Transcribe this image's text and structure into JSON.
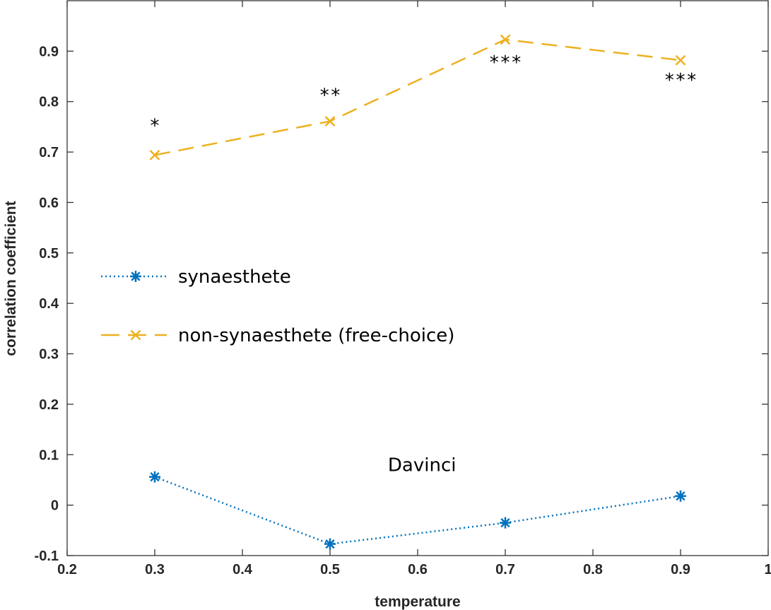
{
  "chart_data": {
    "type": "line",
    "title": "",
    "xlabel": "temperature",
    "ylabel": "correlation coefficient",
    "xlim": [
      0.2,
      1
    ],
    "ylim": [
      -0.1,
      1.0
    ],
    "x_ticks": [
      "0.2",
      "0.3",
      "0.4",
      "0.5",
      "0.6",
      "0.7",
      "0.8",
      "0.9",
      "1"
    ],
    "y_ticks": [
      "-0.1",
      "0",
      "0.1",
      "0.2",
      "0.3",
      "0.4",
      "0.5",
      "0.6",
      "0.7",
      "0.8",
      "0.9"
    ],
    "grid": false,
    "legend_position": "left-middle",
    "x": [
      0.3,
      0.5,
      0.7,
      0.9
    ],
    "series": [
      {
        "name": "synaesthete",
        "values": [
          0.056,
          -0.077,
          -0.035,
          0.018
        ],
        "color": "#0072BD",
        "line_style": "dotted",
        "marker": "asterisk"
      },
      {
        "name": "non-synaesthete (free-choice)",
        "values": [
          0.694,
          0.761,
          0.923,
          0.882
        ],
        "color": "#EDB120",
        "line_style": "dashed",
        "marker": "x"
      }
    ],
    "significance_labels": [
      {
        "x": 0.3,
        "y": 0.76,
        "text": "*"
      },
      {
        "x": 0.5,
        "y": 0.82,
        "text": "**"
      },
      {
        "x": 0.7,
        "y": 0.885,
        "text": "***"
      },
      {
        "x": 0.9,
        "y": 0.85,
        "text": "***"
      }
    ],
    "annotations": [
      {
        "x": 0.605,
        "y": 0.08,
        "text": "Davinci"
      }
    ]
  }
}
